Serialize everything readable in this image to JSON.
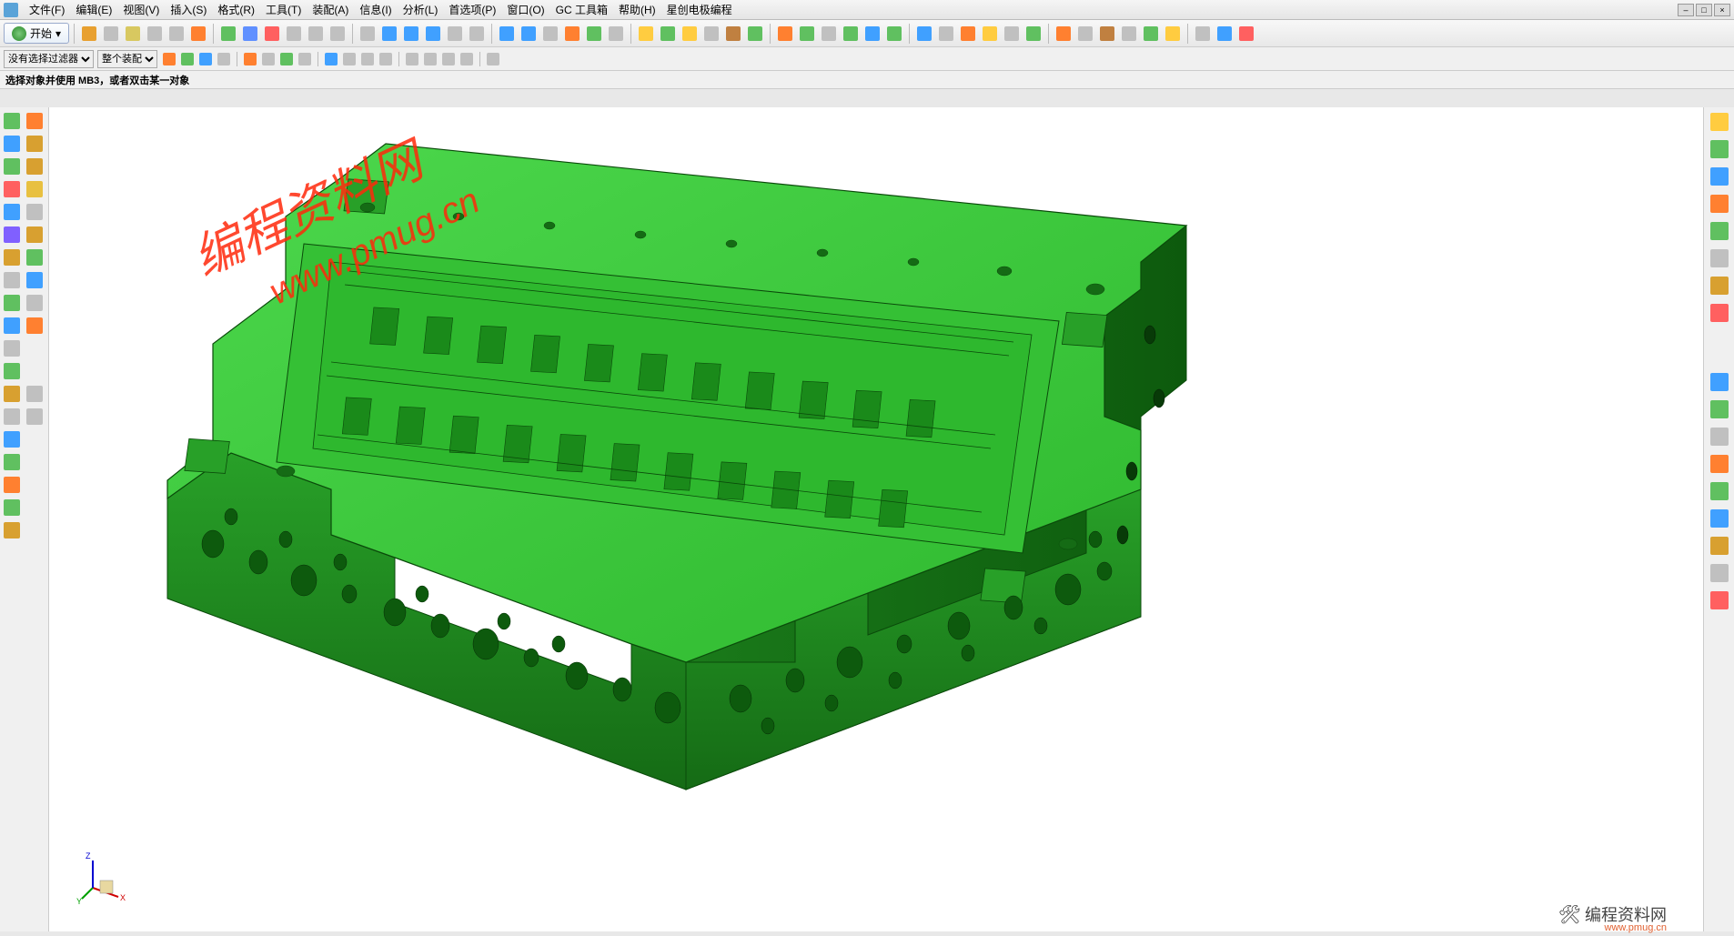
{
  "menubar": {
    "items": [
      "文件(F)",
      "编辑(E)",
      "视图(V)",
      "插入(S)",
      "格式(R)",
      "工具(T)",
      "装配(A)",
      "信息(I)",
      "分析(L)",
      "首选项(P)",
      "窗口(O)",
      "GC 工具箱",
      "帮助(H)",
      "星创电极编程"
    ]
  },
  "start_button": {
    "label": "开始"
  },
  "filter_row": {
    "filter_label": "没有选择过滤器",
    "scope_label": "整个装配"
  },
  "status_line": "选择对象并使用 MB3，或者双击某一对象",
  "toolbar1_colors": [
    "#e8a030",
    "#c0c0c0",
    "#d8c860",
    "#c0c0c0",
    "#c0c0c0",
    "#ff8030",
    "#60c060",
    "#6090ff",
    "#ff6060",
    "#c0c0c0",
    "#c0c0c0",
    "#c0c0c0",
    "#c0c0c0",
    "#40a0ff",
    "#40a0ff",
    "#40a0ff",
    "#c0c0c0",
    "#c0c0c0",
    "#40a0ff",
    "#40a0ff",
    "#c0c0c0",
    "#ff8030",
    "#60c060",
    "#c0c0c0",
    "#ffcc40",
    "#60c060",
    "#ffcc40",
    "#c0c0c0",
    "#c08040",
    "#60c060",
    "#ff8030",
    "#60c060",
    "#c0c0c0",
    "#60c060",
    "#40a0ff",
    "#60c060",
    "#40a0ff",
    "#c0c0c0",
    "#ff8030",
    "#ffcc40",
    "#c0c0c0",
    "#60c060",
    "#ff8030",
    "#c0c0c0",
    "#c08040",
    "#c0c0c0",
    "#60c060",
    "#ffcc40",
    "#c0c0c0",
    "#40a0ff",
    "#ff6060"
  ],
  "toolbar1_names": [
    "copy-icon",
    "paste-icon",
    "sketch-icon",
    "line-icon",
    "arc-icon",
    "circle-icon",
    "extrude-icon",
    "revolve-icon",
    "hole-icon",
    "pattern-icon",
    "mirror-icon",
    "trim-icon",
    "extend-icon",
    "datum-plane-icon",
    "datum-axis-icon",
    "datum-csys-icon",
    "offset-icon",
    "thicken-icon",
    "blend-icon",
    "chamfer-icon",
    "draft-icon",
    "shell-icon",
    "combine-icon",
    "split-icon",
    "sphere-icon",
    "block-icon",
    "cylinder-icon",
    "cone-icon",
    "boolean-icon",
    "unite-icon",
    "subtract-icon",
    "intersect-icon",
    "sew-icon",
    "divide-icon",
    "project-icon",
    "wrap-icon",
    "sweep-icon",
    "loft-icon",
    "hatch-icon",
    "grid-icon",
    "snap-icon",
    "measure-icon",
    "analyze-icon",
    "view-icon",
    "layer-icon",
    "wcs-icon",
    "color-icon",
    "material-icon",
    "render-icon",
    "move-icon",
    "delete-icon"
  ],
  "filter_icons_colors": [
    "#ff8030",
    "#60c060",
    "#40a0ff",
    "#c0c0c0",
    "#ff8030",
    "#c0c0c0",
    "#60c060",
    "#c0c0c0",
    "#40a0ff",
    "#c0c0c0",
    "#c0c0c0",
    "#c0c0c0",
    "#c0c0c0",
    "#c0c0c0",
    "#c0c0c0",
    "#c0c0c0",
    "#c0c0c0"
  ],
  "left_toolbar_colors": [
    [
      "#60c060",
      "#ff8030"
    ],
    [
      "#40a0ff",
      "#d8a030"
    ],
    [
      "#60c060",
      "#d8a030"
    ],
    [
      "#ff6060",
      "#e8c040"
    ],
    [
      "#40a0ff",
      "#c0c0c0"
    ],
    [
      "#8060ff",
      "#d8a030"
    ],
    [
      "#d8a030",
      "#60c060"
    ],
    [
      "#c0c0c0",
      "#40a0ff"
    ],
    [
      "#60c060",
      "#c0c0c0"
    ],
    [
      "#40a0ff",
      "#ff8030"
    ],
    [
      "#c0c0c0",
      ""
    ],
    [
      "#60c060",
      ""
    ],
    [
      "#d8a030",
      "#c0c0c0"
    ],
    [
      "#c0c0c0",
      "#c0c0c0"
    ],
    [
      "#40a0ff",
      ""
    ],
    [
      "#60c060",
      ""
    ],
    [
      "#ff8030",
      ""
    ],
    [
      "#60c060",
      ""
    ],
    [
      "#d8a030",
      ""
    ]
  ],
  "right_toolbar_colors": [
    "#ffcc40",
    "#60c060",
    "#40a0ff",
    "#ff8030",
    "#60c060",
    "#c0c0c0",
    "#d8a030",
    "#ff6060",
    "#40a0ff",
    "#60c060",
    "#c0c0c0",
    "#ff8030",
    "#60c060",
    "#40a0ff",
    "#d8a030",
    "#c0c0c0",
    "#ff6060"
  ],
  "triad": {
    "x_label": "X",
    "y_label": "Y",
    "z_label": "Z",
    "x_color": "#d00000",
    "y_color": "#00a000",
    "z_color": "#0000d0"
  },
  "watermark": {
    "text": "编程资料网",
    "url": "www.pmug.cn"
  },
  "branding": {
    "text": "编程资料网",
    "url": "www.pmug.cn"
  },
  "model": {
    "top_face_color": "#3dc93d",
    "side_dark_color": "#1a7a1a",
    "side_mid_color": "#28a028",
    "edge_color": "#0a4a0a",
    "hole_color": "#0d5a0d"
  }
}
